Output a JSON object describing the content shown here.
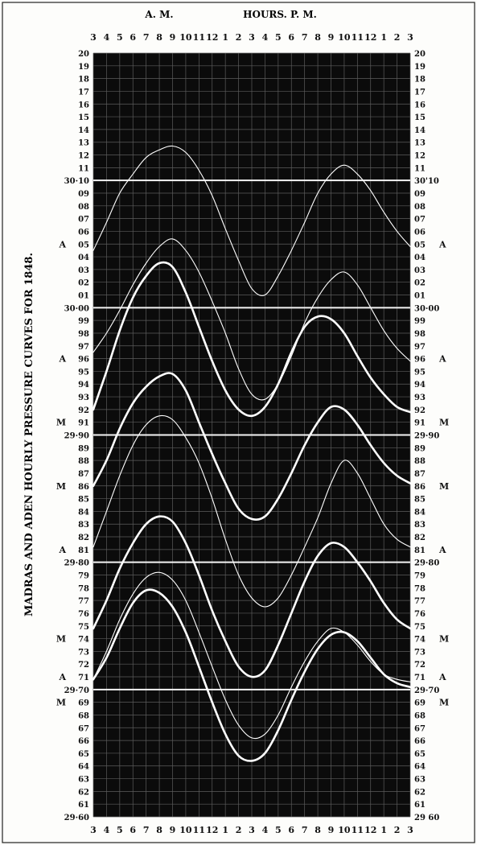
{
  "chart_data": {
    "type": "line",
    "title": "MADRAS AND ADEN HOURLY PRESSURE CURVES FOR 1848.",
    "header": {
      "am_label": "A. M.",
      "pm_label": "HOURS. P. M."
    },
    "x_ticks": [
      "3",
      "4",
      "5",
      "6",
      "7",
      "8",
      "9",
      "10",
      "11",
      "12",
      "1",
      "2",
      "3",
      "4",
      "5",
      "6",
      "7",
      "8",
      "9",
      "10",
      "11",
      "12",
      "1",
      "2",
      "3"
    ],
    "x_ticks_bottom": [
      "3",
      "4",
      "5",
      "6",
      "7",
      "8",
      "9",
      "10",
      "11",
      "12",
      "1",
      "2",
      "3",
      "4",
      "5",
      "6",
      "7",
      "8",
      "9",
      "10",
      "11",
      "12",
      "1",
      "2",
      "3"
    ],
    "x_labels_top": [
      "3",
      "4",
      "5",
      "6",
      "7",
      "8",
      "9",
      "10",
      "11",
      "12",
      "1",
      "2",
      "3",
      "4",
      "5",
      "6",
      "7",
      "8",
      "9",
      "10",
      "11",
      "12",
      "1",
      "2",
      "3"
    ],
    "ylim": [
      29.6,
      30.2
    ],
    "y_ticks_left": [
      "20",
      "19",
      "18",
      "17",
      "16",
      "15",
      "14",
      "13",
      "12",
      "11",
      "30·10",
      "09",
      "08",
      "07",
      "06",
      "05",
      "04",
      "03",
      "02",
      "01",
      "30·00",
      "99",
      "98",
      "97",
      "96",
      "95",
      "94",
      "93",
      "92",
      "91",
      "29·90",
      "89",
      "88",
      "87",
      "86",
      "85",
      "84",
      "83",
      "82",
      "81",
      "29·80",
      "79",
      "78",
      "77",
      "76",
      "75",
      "74",
      "73",
      "72",
      "71",
      "29·70",
      "69",
      "68",
      "67",
      "66",
      "65",
      "64",
      "63",
      "62",
      "61",
      "29·60"
    ],
    "y_ticks_right": [
      "20",
      "19",
      "18",
      "17",
      "16",
      "15",
      "14",
      "13",
      "12",
      "11",
      "30'10",
      "09",
      "08",
      "07",
      "06",
      "05",
      "04",
      "03",
      "02",
      "01",
      "30·00",
      "99",
      "98",
      "97",
      "96",
      "95",
      "94",
      "93",
      "92",
      "91",
      "29·90",
      "89",
      "88",
      "87",
      "86",
      "85",
      "84",
      "83",
      "82",
      "81",
      "29·80",
      "79",
      "78",
      "77",
      "76",
      "75",
      "74",
      "73",
      "72",
      "71",
      "29·70",
      "69",
      "68",
      "67",
      "66",
      "65",
      "64",
      "63",
      "62",
      "61",
      "29 60"
    ],
    "station_markers": [
      {
        "text": "A",
        "y": 30.05
      },
      {
        "text": "A",
        "y": 29.96
      },
      {
        "text": "M",
        "y": 29.91
      },
      {
        "text": "M",
        "y": 29.86
      },
      {
        "text": "A",
        "y": 29.81
      },
      {
        "text": "M",
        "y": 29.74
      },
      {
        "text": "A",
        "y": 29.71
      },
      {
        "text": "M",
        "y": 29.69
      }
    ],
    "hlines": [
      30.1,
      30.0,
      29.9,
      29.8,
      29.7
    ],
    "series": [
      {
        "x": [
          3,
          4,
          5,
          6,
          7,
          8,
          9,
          10,
          11,
          12,
          13,
          14,
          15,
          16,
          17,
          18,
          19,
          20,
          21,
          22,
          23,
          24,
          25,
          26,
          27
        ],
        "values": [
          30.045,
          30.067,
          30.09,
          30.105,
          30.118,
          30.124,
          30.127,
          30.122,
          30.108,
          30.088,
          30.062,
          30.037,
          30.015,
          30.01,
          30.025,
          30.045,
          30.067,
          30.09,
          30.105,
          30.112,
          30.105,
          30.092,
          30.075,
          30.06,
          30.048
        ],
        "weight": "thin"
      },
      {
        "x": [
          3,
          4,
          5,
          6,
          7,
          8,
          9,
          10,
          11,
          12,
          13,
          14,
          15,
          16,
          17,
          18,
          19,
          20,
          21,
          22,
          23,
          24,
          25,
          26,
          27
        ],
        "values": [
          29.965,
          29.98,
          29.998,
          30.018,
          30.035,
          30.048,
          30.054,
          30.045,
          30.028,
          30.005,
          29.98,
          29.952,
          29.932,
          29.928,
          29.94,
          29.962,
          29.988,
          30.008,
          30.022,
          30.028,
          30.018,
          30.0,
          29.982,
          29.968,
          29.958
        ],
        "weight": "thin"
      },
      {
        "x": [
          3,
          4,
          5,
          6,
          7,
          8,
          9,
          10,
          11,
          12,
          13,
          14,
          15,
          16,
          17,
          18,
          19,
          20,
          21,
          22,
          23,
          24,
          25,
          26,
          27
        ],
        "values": [
          29.92,
          29.95,
          29.982,
          30.008,
          30.025,
          30.035,
          30.032,
          30.012,
          29.985,
          29.958,
          29.935,
          29.92,
          29.915,
          29.922,
          29.94,
          29.965,
          29.985,
          29.993,
          29.991,
          29.98,
          29.962,
          29.945,
          29.932,
          29.922,
          29.918
        ],
        "weight": "bold"
      },
      {
        "x": [
          3,
          4,
          5,
          6,
          7,
          8,
          9,
          10,
          11,
          12,
          13,
          14,
          15,
          16,
          17,
          18,
          19,
          20,
          21,
          22,
          23,
          24,
          25,
          26,
          27
        ],
        "values": [
          29.86,
          29.88,
          29.905,
          29.925,
          29.938,
          29.946,
          29.948,
          29.935,
          29.91,
          29.885,
          29.862,
          29.842,
          29.834,
          29.836,
          29.85,
          29.87,
          29.892,
          29.91,
          29.922,
          29.92,
          29.908,
          29.892,
          29.878,
          29.868,
          29.862
        ],
        "weight": "bold"
      },
      {
        "x": [
          3,
          4,
          5,
          6,
          7,
          8,
          9,
          10,
          11,
          12,
          13,
          14,
          15,
          16,
          17,
          18,
          19,
          20,
          21,
          22,
          23,
          24,
          25,
          26,
          27
        ],
        "values": [
          29.812,
          29.84,
          29.868,
          29.892,
          29.908,
          29.915,
          29.912,
          29.898,
          29.878,
          29.85,
          29.818,
          29.79,
          29.772,
          29.765,
          29.772,
          29.79,
          29.812,
          29.835,
          29.862,
          29.88,
          29.87,
          29.85,
          29.83,
          29.818,
          29.812
        ],
        "weight": "thin"
      },
      {
        "x": [
          3,
          4,
          5,
          6,
          7,
          8,
          9,
          10,
          11,
          12,
          13,
          14,
          15,
          16,
          17,
          18,
          19,
          20,
          21,
          22,
          23,
          24,
          25,
          26,
          27
        ],
        "values": [
          29.748,
          29.77,
          29.795,
          29.815,
          29.83,
          29.836,
          29.832,
          29.815,
          29.79,
          29.762,
          29.738,
          29.718,
          29.71,
          29.715,
          29.735,
          29.76,
          29.785,
          29.805,
          29.815,
          29.812,
          29.8,
          29.785,
          29.768,
          29.755,
          29.748
        ],
        "weight": "bold"
      },
      {
        "x": [
          3,
          4,
          5,
          6,
          7,
          8,
          9,
          10,
          11,
          12,
          13,
          14,
          15,
          16,
          17,
          18,
          19,
          20,
          21,
          22,
          23,
          24,
          25,
          26,
          27
        ],
        "values": [
          29.708,
          29.73,
          29.755,
          29.775,
          29.788,
          29.792,
          29.786,
          29.77,
          29.745,
          29.718,
          29.692,
          29.672,
          29.662,
          29.665,
          29.68,
          29.702,
          29.722,
          29.738,
          29.748,
          29.745,
          29.735,
          29.722,
          29.712,
          29.708,
          29.706
        ],
        "weight": "thin"
      },
      {
        "x": [
          3,
          4,
          5,
          6,
          7,
          8,
          9,
          10,
          11,
          12,
          13,
          14,
          15,
          16,
          17,
          18,
          19,
          20,
          21,
          22,
          23,
          24,
          25,
          26,
          27
        ],
        "values": [
          29.708,
          29.725,
          29.748,
          29.768,
          29.778,
          29.776,
          29.765,
          29.745,
          29.718,
          29.69,
          29.665,
          29.648,
          29.644,
          29.65,
          29.668,
          29.692,
          29.714,
          29.732,
          29.743,
          29.745,
          29.738,
          29.725,
          29.712,
          29.705,
          29.702
        ],
        "weight": "bold"
      }
    ]
  }
}
